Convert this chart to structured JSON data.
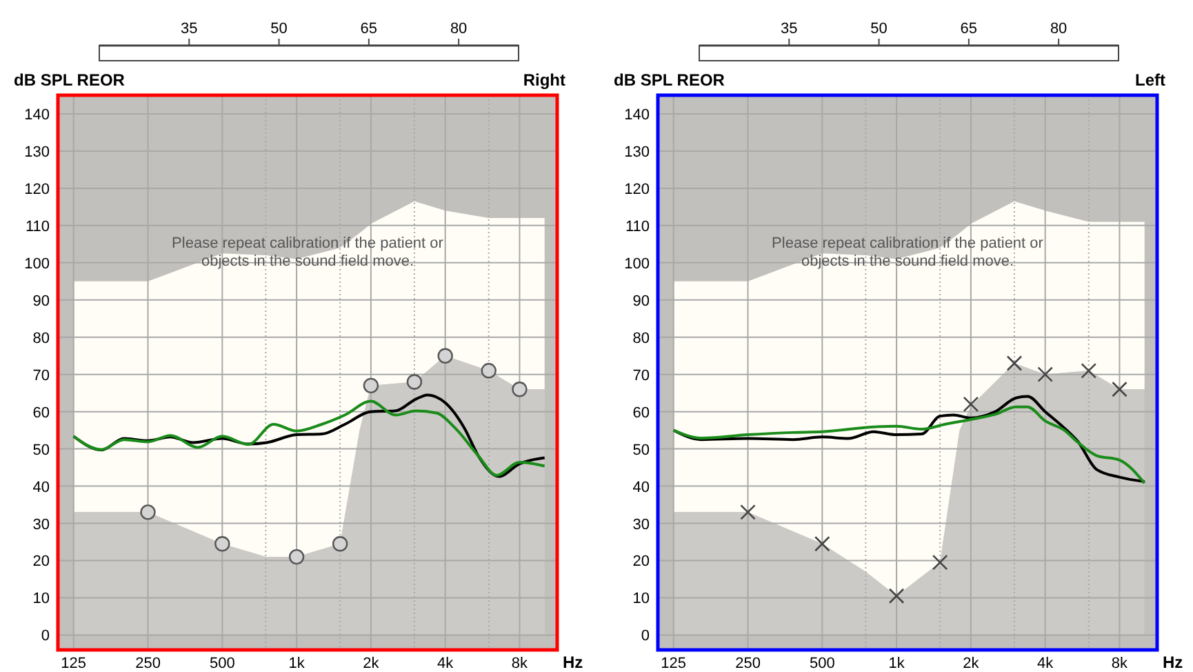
{
  "chart_data": [
    {
      "type": "line",
      "title": "Right",
      "xlabel": "Hz",
      "ylabel": "dB SPL REOR",
      "log": "x",
      "grid": true,
      "xlim": [
        108,
        11360
      ],
      "xticks": [
        125,
        250,
        500,
        {
          "value": 750,
          "label": null
        },
        {
          "value": 1000,
          "label": "1k"
        },
        {
          "value": 1500,
          "label": null
        },
        {
          "value": 2000,
          "label": "2k"
        },
        {
          "value": 3000,
          "label": null
        },
        {
          "value": 4000,
          "label": "4k"
        },
        {
          "value": 6000,
          "label": null
        },
        {
          "value": 8000,
          "label": "8k"
        }
      ],
      "ylim": [
        -4,
        145
      ],
      "yticks": [
        0,
        10,
        20,
        30,
        40,
        50,
        60,
        70,
        80,
        90,
        100,
        110,
        120,
        130,
        140
      ],
      "x2lim": [
        20,
        90
      ],
      "x2ticks": [
        35,
        50,
        65,
        80
      ],
      "annotations": [
        "Please repeat calibration if the patient or objects in the sound field move."
      ],
      "series": [
        {
          "type": "area",
          "color": "#fffdf6",
          "x": [
            125,
            250,
            500,
            750,
            1000,
            1500,
            1800,
            2000,
            3000,
            4000,
            6000,
            8000,
            10100
          ],
          "values": [
            95,
            95,
            102.5,
            102,
            101,
            104,
            108,
            110.5,
            116.5,
            114,
            112,
            112,
            112
          ]
        },
        {
          "type": "area",
          "color": "#cccac6",
          "x": [
            125,
            250,
            500,
            750,
            1000,
            1500,
            1800,
            2000,
            3000,
            4000,
            6000,
            8000,
            10100
          ],
          "values": [
            33,
            33,
            24.5,
            21,
            21,
            24.5,
            55,
            67,
            68,
            75,
            71,
            66,
            66
          ]
        },
        {
          "color": "#000000",
          "x": [
            125,
            162,
            200,
            250,
            308,
            381,
            500,
            638,
            757,
            1000,
            1265,
            1568,
            2000,
            2512,
            3047,
            3392,
            4000,
            4780,
            5437,
            6592,
            8000,
            10100
          ],
          "values": [
            53.4,
            49.7,
            52.8,
            52.2,
            53.2,
            51.7,
            52.8,
            51.3,
            51.7,
            53.8,
            54,
            56.6,
            60,
            60.2,
            63.4,
            64.5,
            62.4,
            55.6,
            48.2,
            42.6,
            46,
            47.6
          ]
        },
        {
          "color": "#1a8c1a",
          "x": [
            125,
            162,
            200,
            250,
            308,
            398,
            500,
            638,
            807,
            1000,
            1265,
            1568,
            2000,
            2512,
            3047,
            3695,
            4387,
            5437,
            6453,
            8000,
            10100
          ],
          "values": [
            53.4,
            49.8,
            52.5,
            51.9,
            53.6,
            50.4,
            53.4,
            51.2,
            56.6,
            54.8,
            56.6,
            59.1,
            62.8,
            59.1,
            60.2,
            59.6,
            55.6,
            48.2,
            42.9,
            46.4,
            45.4
          ]
        },
        {
          "type": "scatter",
          "color": "#555555",
          "marker": "circle",
          "x": [
            250,
            500,
            1000,
            1500,
            2000,
            3000,
            4000,
            6000,
            8000
          ],
          "values": [
            33,
            24.5,
            21,
            24.5,
            67,
            68,
            75,
            71,
            66
          ]
        }
      ]
    },
    {
      "type": "line",
      "title": "Left",
      "xlabel": "Hz",
      "ylabel": "dB SPL REOR",
      "log": "x",
      "grid": true,
      "xlim": [
        108,
        11360
      ],
      "xticks": [
        125,
        250,
        500,
        {
          "value": 750,
          "label": null
        },
        {
          "value": 1000,
          "label": "1k"
        },
        {
          "value": 1500,
          "label": null
        },
        {
          "value": 2000,
          "label": "2k"
        },
        {
          "value": 3000,
          "label": null
        },
        {
          "value": 4000,
          "label": "4k"
        },
        {
          "value": 6000,
          "label": null
        },
        {
          "value": 8000,
          "label": "8k"
        }
      ],
      "ylim": [
        -4,
        145
      ],
      "yticks": [
        0,
        10,
        20,
        30,
        40,
        50,
        60,
        70,
        80,
        90,
        100,
        110,
        120,
        130,
        140
      ],
      "x2lim": [
        20,
        90
      ],
      "x2ticks": [
        35,
        50,
        65,
        80
      ],
      "annotations": [
        "Please repeat calibration if the patient or objects in the sound field move."
      ],
      "series": [
        {
          "type": "area",
          "color": "#fffdf6",
          "x": [
            125,
            250,
            500,
            750,
            1000,
            1500,
            1800,
            2000,
            3000,
            4000,
            6000,
            8000,
            10100
          ],
          "values": [
            95,
            95,
            102.5,
            102,
            101,
            104,
            108,
            110.5,
            116.5,
            114,
            111,
            111,
            111
          ]
        },
        {
          "type": "area",
          "color": "#cccac6",
          "x": [
            125,
            250,
            500,
            750,
            1000,
            1500,
            1800,
            2000,
            3000,
            4000,
            6000,
            8000,
            10100
          ],
          "values": [
            33,
            33,
            24.5,
            17,
            10.5,
            19.5,
            55,
            61.5,
            73,
            70,
            71,
            66,
            66
          ]
        },
        {
          "color": "#000000",
          "x": [
            125,
            162,
            250,
            381,
            500,
            638,
            807,
            1000,
            1265,
            1500,
            1700,
            2000,
            2512,
            3047,
            3392,
            4000,
            4780,
            5437,
            6453,
            8000,
            10100
          ],
          "values": [
            55,
            52.5,
            52.8,
            52.5,
            53.2,
            52.8,
            54.6,
            53.8,
            54,
            58.8,
            59.1,
            58.3,
            60,
            63.7,
            64.1,
            60,
            55.6,
            51.9,
            44.5,
            42.4,
            41.2
          ]
        },
        {
          "color": "#1a8c1a",
          "x": [
            125,
            162,
            250,
            381,
            500,
            807,
            1000,
            1265,
            1568,
            2000,
            2512,
            3047,
            3392,
            4000,
            4780,
            5437,
            6453,
            8000,
            10100
          ],
          "values": [
            55,
            52.9,
            53.8,
            54.4,
            54.6,
            55.9,
            56.1,
            55.3,
            56.6,
            57.9,
            59.3,
            61.3,
            61.3,
            57.5,
            55,
            51.7,
            48.2,
            47,
            40.8
          ]
        },
        {
          "type": "scatter",
          "color": "#444444",
          "marker": "cross",
          "x": [
            250,
            500,
            1000,
            1500,
            2000,
            3000,
            4000,
            6000,
            8000
          ],
          "values": [
            33,
            24.5,
            10.5,
            19.5,
            62,
            73,
            70,
            71,
            66
          ]
        }
      ]
    }
  ]
}
